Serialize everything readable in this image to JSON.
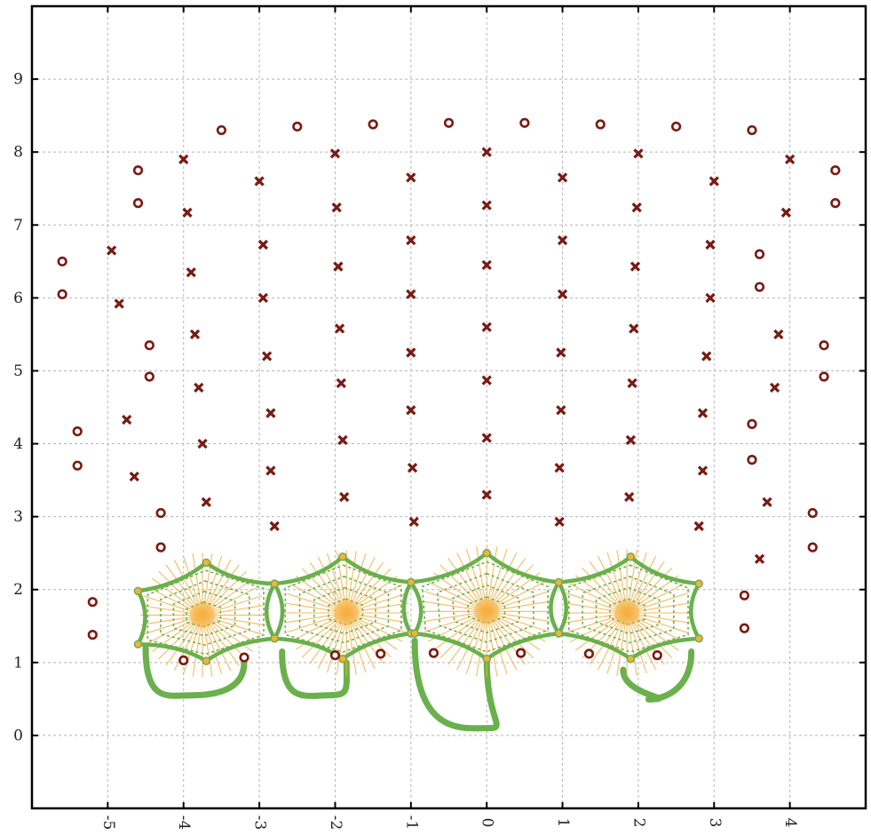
{
  "chart_data": {
    "type": "scatter",
    "title": "",
    "xlabel": "",
    "ylabel": "",
    "xlim": [
      -6.0,
      5.0
    ],
    "ylim": [
      -1.0,
      10.0
    ],
    "grid": true,
    "x_ticks": [
      "-5",
      "-4",
      "-3",
      "-2",
      "-1",
      "0",
      "1",
      "2",
      "3",
      "4"
    ],
    "y_ticks": [
      "0",
      "1",
      "2",
      "3",
      "4",
      "5",
      "6",
      "7",
      "8",
      "9"
    ],
    "colors": {
      "marker": "#7a1b12",
      "curve": "#6ab04c",
      "spokes": "#f5b041",
      "grid": "#b5b5b5",
      "axis": "#000000"
    },
    "series": [
      {
        "marker": "open-circle",
        "points": [
          [
            -5.6,
            6.5
          ],
          [
            -5.6,
            6.05
          ],
          [
            -5.4,
            4.17
          ],
          [
            -5.4,
            3.7
          ],
          [
            -5.2,
            1.83
          ],
          [
            -5.2,
            1.38
          ],
          [
            -4.6,
            7.75
          ],
          [
            -4.6,
            7.3
          ],
          [
            -4.45,
            5.35
          ],
          [
            -4.45,
            4.92
          ],
          [
            -4.3,
            3.05
          ],
          [
            -4.3,
            2.58
          ],
          [
            -3.5,
            8.3
          ],
          [
            -2.5,
            8.35
          ],
          [
            -1.5,
            8.38
          ],
          [
            -0.5,
            8.4
          ],
          [
            0.5,
            8.4
          ],
          [
            1.5,
            8.38
          ],
          [
            2.5,
            8.35
          ],
          [
            3.5,
            8.3
          ],
          [
            3.6,
            6.6
          ],
          [
            3.6,
            6.15
          ],
          [
            3.5,
            4.27
          ],
          [
            3.5,
            3.78
          ],
          [
            3.4,
            1.92
          ],
          [
            3.4,
            1.47
          ],
          [
            4.6,
            7.75
          ],
          [
            4.6,
            7.3
          ],
          [
            4.45,
            5.35
          ],
          [
            4.45,
            4.92
          ],
          [
            4.3,
            3.05
          ],
          [
            4.3,
            2.58
          ],
          [
            -4.0,
            1.03
          ],
          [
            -3.2,
            1.07
          ],
          [
            -2.0,
            1.1
          ],
          [
            -1.4,
            1.12
          ],
          [
            -0.7,
            1.13
          ],
          [
            0.45,
            1.13
          ],
          [
            1.35,
            1.12
          ],
          [
            2.25,
            1.1
          ]
        ]
      },
      {
        "marker": "filled-x",
        "points": [
          [
            -4.0,
            7.9
          ],
          [
            -3.95,
            7.17
          ],
          [
            -3.9,
            6.35
          ],
          [
            -3.85,
            5.5
          ],
          [
            -3.8,
            4.77
          ],
          [
            -3.75,
            4.0
          ],
          [
            -3.7,
            3.2
          ],
          [
            -4.95,
            6.65
          ],
          [
            -4.85,
            5.92
          ],
          [
            -4.75,
            4.33
          ],
          [
            -4.65,
            3.55
          ],
          [
            -3.0,
            7.6
          ],
          [
            -2.95,
            6.73
          ],
          [
            -2.95,
            6.0
          ],
          [
            -2.9,
            5.2
          ],
          [
            -2.85,
            4.42
          ],
          [
            -2.85,
            3.63
          ],
          [
            -2.8,
            2.87
          ],
          [
            -2.0,
            7.98
          ],
          [
            -1.98,
            7.24
          ],
          [
            -1.96,
            6.43
          ],
          [
            -1.94,
            5.58
          ],
          [
            -1.92,
            4.83
          ],
          [
            -1.9,
            4.05
          ],
          [
            -1.88,
            3.27
          ],
          [
            -1.0,
            7.65
          ],
          [
            -1.0,
            6.79
          ],
          [
            -1.0,
            6.05
          ],
          [
            -1.0,
            5.25
          ],
          [
            -1.0,
            4.46
          ],
          [
            -0.98,
            3.67
          ],
          [
            -0.96,
            2.93
          ],
          [
            0.0,
            8.0
          ],
          [
            0.0,
            7.27
          ],
          [
            0.0,
            6.45
          ],
          [
            0.0,
            5.6
          ],
          [
            0.0,
            4.87
          ],
          [
            0.0,
            4.08
          ],
          [
            0.0,
            3.3
          ],
          [
            1.0,
            7.65
          ],
          [
            1.0,
            6.79
          ],
          [
            1.0,
            6.05
          ],
          [
            0.98,
            5.25
          ],
          [
            0.98,
            4.46
          ],
          [
            0.96,
            3.67
          ],
          [
            0.96,
            2.93
          ],
          [
            2.0,
            7.98
          ],
          [
            1.98,
            7.24
          ],
          [
            1.96,
            6.43
          ],
          [
            1.94,
            5.58
          ],
          [
            1.92,
            4.83
          ],
          [
            1.9,
            4.05
          ],
          [
            1.88,
            3.27
          ],
          [
            3.0,
            7.6
          ],
          [
            2.95,
            6.73
          ],
          [
            2.95,
            6.0
          ],
          [
            2.9,
            5.2
          ],
          [
            2.85,
            4.42
          ],
          [
            2.85,
            3.63
          ],
          [
            2.8,
            2.87
          ],
          [
            4.0,
            7.9
          ],
          [
            3.95,
            7.17
          ],
          [
            3.85,
            5.5
          ],
          [
            3.8,
            4.77
          ],
          [
            3.7,
            3.2
          ],
          [
            3.6,
            2.42
          ]
        ]
      }
    ],
    "rosettes": [
      {
        "center": [
          -3.75,
          1.65
        ],
        "vertices": [
          [
            -3.7,
            2.37
          ],
          [
            -2.8,
            2.08
          ],
          [
            -2.8,
            1.33
          ],
          [
            -3.7,
            1.02
          ],
          [
            -4.6,
            1.25
          ],
          [
            -4.6,
            1.98
          ]
        ]
      },
      {
        "center": [
          -1.85,
          1.68
        ],
        "vertices": [
          [
            -1.9,
            2.45
          ],
          [
            -1.0,
            2.1
          ],
          [
            -1.0,
            1.4
          ],
          [
            -1.9,
            1.05
          ],
          [
            -2.8,
            1.33
          ],
          [
            -2.8,
            2.08
          ]
        ]
      },
      {
        "center": [
          0.0,
          1.7
        ],
        "vertices": [
          [
            0.0,
            2.5
          ],
          [
            0.95,
            2.1
          ],
          [
            0.95,
            1.4
          ],
          [
            0.0,
            1.05
          ],
          [
            -0.95,
            1.4
          ],
          [
            -1.0,
            2.1
          ]
        ]
      },
      {
        "center": [
          1.85,
          1.68
        ],
        "vertices": [
          [
            1.9,
            2.45
          ],
          [
            2.8,
            2.08
          ],
          [
            2.8,
            1.33
          ],
          [
            1.9,
            1.05
          ],
          [
            0.95,
            1.4
          ],
          [
            0.95,
            2.1
          ]
        ]
      }
    ],
    "loops": [
      {
        "from": [
          -4.5,
          1.2
        ],
        "via": [
          -3.9,
          0.55
        ],
        "to": [
          -3.2,
          1.0
        ]
      },
      {
        "from": [
          -2.7,
          1.15
        ],
        "via": [
          -2.1,
          0.55
        ],
        "to": [
          -1.85,
          1.0
        ]
      },
      {
        "from": [
          -0.95,
          1.3
        ],
        "via": [
          0.0,
          0.1
        ],
        "to": [
          0.0,
          1.05
        ]
      },
      {
        "from": [
          2.7,
          1.15
        ],
        "via": [
          2.2,
          0.5
        ],
        "to": [
          1.8,
          0.9
        ]
      }
    ]
  }
}
